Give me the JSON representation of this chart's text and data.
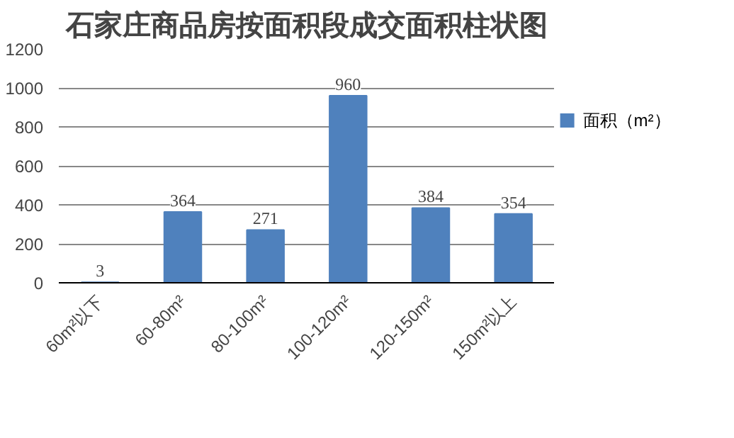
{
  "chart_data": {
    "type": "bar",
    "title": "石家庄商品房按面积段成交面积柱状图",
    "categories": [
      "60m²以下",
      "60-80m²",
      "80-100m²",
      "100-120m²",
      "120-150m²",
      "150m²以上"
    ],
    "series": [
      {
        "name": "面积（m²）",
        "color": "#4f81bd",
        "values": [
          3,
          364,
          271,
          960,
          384,
          354
        ]
      }
    ],
    "ylim": [
      0,
      1200
    ],
    "yticks": [
      0,
      200,
      400,
      600,
      800,
      1000,
      1200
    ],
    "grid": "y",
    "legend": "right",
    "data_labels": true
  }
}
